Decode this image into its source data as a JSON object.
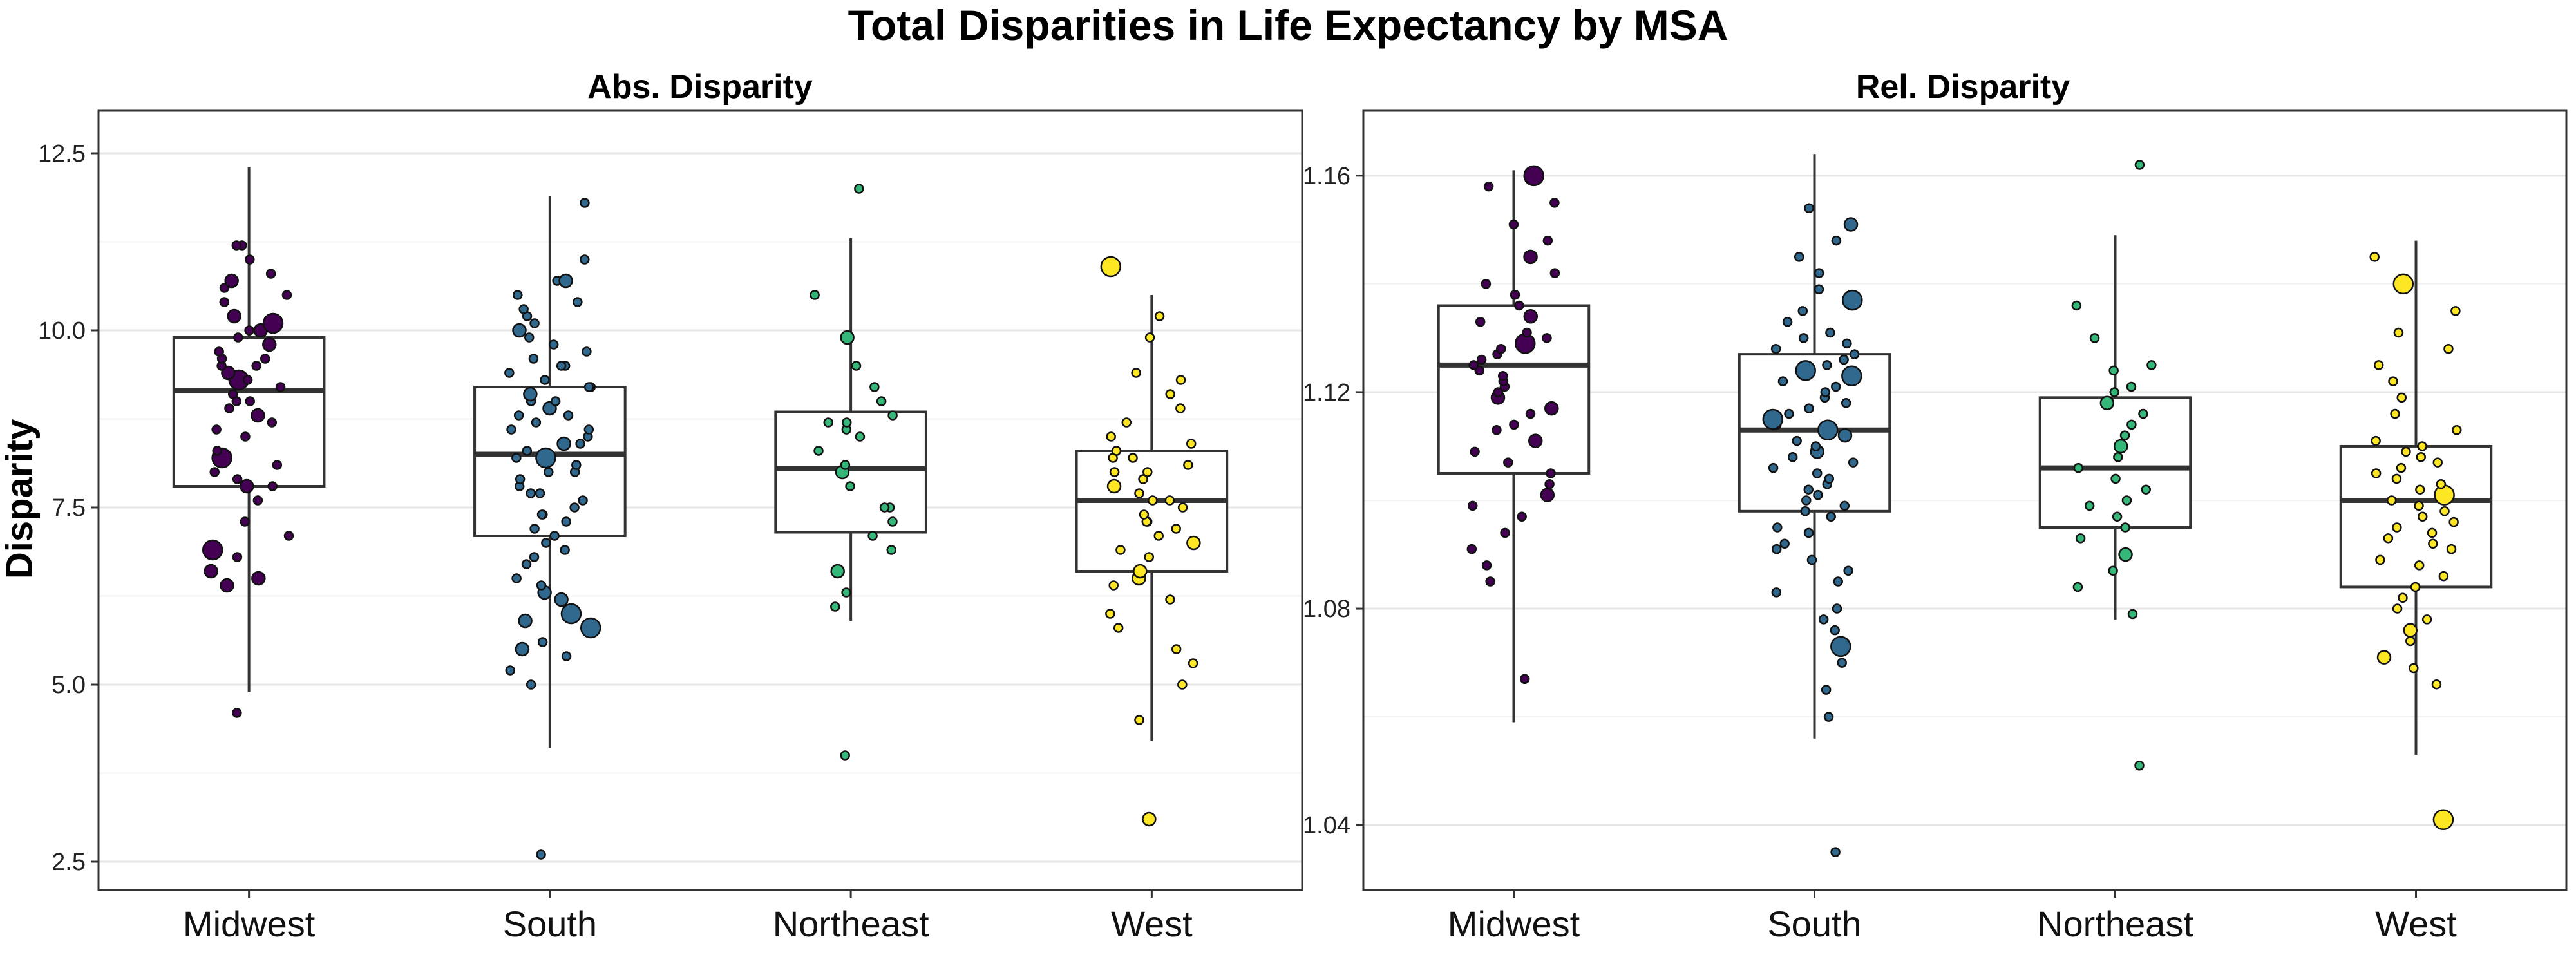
{
  "figure": {
    "title": "Total Disparities in Life Expectancy by MSA",
    "ylabel": "Disparity"
  },
  "colors": {
    "Midwest": "#440154",
    "South": "#31688E",
    "Northeast": "#35B779",
    "West": "#FDE725",
    "box_stroke": "#333333",
    "grid": "#E6E6E6"
  },
  "chart_data": [
    {
      "type": "boxplot",
      "title": "Abs. Disparity",
      "ylabel": "Disparity",
      "categories": [
        "Midwest",
        "South",
        "Northeast",
        "West"
      ],
      "ylim": [
        2.1,
        13.1
      ],
      "yticks": [
        2.5,
        5.0,
        7.5,
        10.0,
        12.5
      ],
      "ytick_labels": [
        "2.5",
        "5.0",
        "7.5",
        "10.0",
        "12.5"
      ],
      "grid": true,
      "boxes": [
        {
          "category": "Midwest",
          "whisker_low": 4.9,
          "q1": 7.8,
          "median": 9.15,
          "q3": 9.9,
          "whisker_high": 12.3
        },
        {
          "category": "South",
          "whisker_low": 4.1,
          "q1": 7.1,
          "median": 8.25,
          "q3": 9.2,
          "whisker_high": 11.9
        },
        {
          "category": "Northeast",
          "whisker_low": 5.9,
          "q1": 7.15,
          "median": 8.05,
          "q3": 8.85,
          "whisker_high": 11.3
        },
        {
          "category": "West",
          "whisker_low": 4.2,
          "q1": 6.6,
          "median": 7.6,
          "q3": 8.3,
          "whisker_high": 10.5
        }
      ],
      "outliers": [
        {
          "category": "Midwest",
          "values": [
            4.6
          ]
        },
        {
          "category": "South",
          "values": [
            2.6
          ]
        },
        {
          "category": "Northeast",
          "values": [
            4.0,
            12.0
          ]
        },
        {
          "category": "West",
          "values": [
            3.1,
            10.9
          ]
        }
      ],
      "points": [
        {
          "category": "Midwest",
          "values": [
            6.4,
            6.5,
            6.6,
            6.8,
            6.9,
            7.1,
            7.3,
            7.6,
            7.8,
            7.8,
            7.9,
            8.0,
            8.1,
            8.2,
            8.3,
            8.5,
            8.6,
            8.7,
            8.8,
            8.9,
            9.0,
            9.0,
            9.1,
            9.2,
            9.3,
            9.3,
            9.4,
            9.5,
            9.5,
            9.6,
            9.6,
            9.7,
            9.8,
            9.9,
            10.0,
            10.0,
            10.1,
            10.2,
            10.4,
            10.5,
            10.6,
            10.7,
            10.8,
            11.0,
            11.2,
            11.2
          ]
        },
        {
          "category": "South",
          "values": [
            5.0,
            5.2,
            5.4,
            5.5,
            5.6,
            5.8,
            5.9,
            6.0,
            6.2,
            6.3,
            6.4,
            6.5,
            6.7,
            6.8,
            6.9,
            7.0,
            7.1,
            7.2,
            7.3,
            7.4,
            7.4,
            7.5,
            7.6,
            7.7,
            7.7,
            7.8,
            7.9,
            8.0,
            8.0,
            8.1,
            8.2,
            8.2,
            8.3,
            8.4,
            8.4,
            8.5,
            8.6,
            8.6,
            8.7,
            8.8,
            8.8,
            8.9,
            9.0,
            9.0,
            9.1,
            9.2,
            9.2,
            9.3,
            9.4,
            9.5,
            9.5,
            9.6,
            9.7,
            9.8,
            9.9,
            10.0,
            10.1,
            10.2,
            10.3,
            10.4,
            10.5,
            10.7,
            10.7,
            11.0,
            11.8
          ]
        },
        {
          "category": "Northeast",
          "values": [
            6.1,
            6.3,
            6.6,
            6.9,
            7.1,
            7.3,
            7.5,
            7.5,
            7.8,
            8.0,
            8.1,
            8.3,
            8.5,
            8.6,
            8.7,
            8.7,
            8.8,
            9.0,
            9.2,
            9.5,
            9.9,
            10.5
          ]
        },
        {
          "category": "West",
          "values": [
            4.5,
            5.0,
            5.3,
            5.5,
            5.8,
            6.0,
            6.2,
            6.4,
            6.5,
            6.6,
            6.8,
            6.9,
            7.0,
            7.1,
            7.2,
            7.3,
            7.3,
            7.4,
            7.5,
            7.6,
            7.6,
            7.7,
            7.8,
            7.9,
            8.0,
            8.0,
            8.1,
            8.2,
            8.2,
            8.3,
            8.4,
            8.5,
            8.7,
            8.9,
            9.1,
            9.3,
            9.4,
            9.9,
            10.2
          ]
        }
      ]
    },
    {
      "type": "boxplot",
      "title": "Rel. Disparity",
      "categories": [
        "Midwest",
        "South",
        "Northeast",
        "West"
      ],
      "ylim": [
        1.028,
        1.172
      ],
      "yticks": [
        1.04,
        1.08,
        1.12,
        1.16
      ],
      "ytick_labels": [
        "1.04",
        "1.08",
        "1.12",
        "1.16"
      ],
      "grid": true,
      "boxes": [
        {
          "category": "Midwest",
          "whisker_low": 1.059,
          "q1": 1.105,
          "median": 1.125,
          "q3": 1.136,
          "whisker_high": 1.161
        },
        {
          "category": "South",
          "whisker_low": 1.056,
          "q1": 1.098,
          "median": 1.113,
          "q3": 1.127,
          "whisker_high": 1.164
        },
        {
          "category": "Northeast",
          "whisker_low": 1.078,
          "q1": 1.095,
          "median": 1.106,
          "q3": 1.119,
          "whisker_high": 1.149
        },
        {
          "category": "West",
          "whisker_low": 1.053,
          "q1": 1.084,
          "median": 1.1,
          "q3": 1.11,
          "whisker_high": 1.148
        }
      ],
      "outliers": [
        {
          "category": "South",
          "values": [
            1.035
          ]
        },
        {
          "category": "Northeast",
          "values": [
            1.051,
            1.162
          ]
        },
        {
          "category": "West",
          "values": [
            1.041
          ]
        }
      ],
      "points": [
        {
          "category": "Midwest",
          "values": [
            1.067,
            1.085,
            1.088,
            1.091,
            1.094,
            1.097,
            1.099,
            1.101,
            1.103,
            1.105,
            1.107,
            1.109,
            1.111,
            1.113,
            1.114,
            1.116,
            1.117,
            1.119,
            1.12,
            1.121,
            1.122,
            1.123,
            1.124,
            1.125,
            1.126,
            1.127,
            1.128,
            1.129,
            1.13,
            1.131,
            1.133,
            1.134,
            1.136,
            1.138,
            1.14,
            1.142,
            1.145,
            1.148,
            1.151,
            1.155,
            1.158,
            1.16
          ]
        },
        {
          "category": "South",
          "values": [
            1.06,
            1.065,
            1.07,
            1.073,
            1.076,
            1.078,
            1.08,
            1.083,
            1.085,
            1.087,
            1.089,
            1.091,
            1.092,
            1.094,
            1.095,
            1.097,
            1.098,
            1.099,
            1.1,
            1.101,
            1.102,
            1.103,
            1.104,
            1.105,
            1.106,
            1.107,
            1.108,
            1.109,
            1.11,
            1.111,
            1.112,
            1.113,
            1.114,
            1.115,
            1.116,
            1.117,
            1.118,
            1.119,
            1.12,
            1.121,
            1.122,
            1.123,
            1.124,
            1.125,
            1.126,
            1.127,
            1.128,
            1.129,
            1.13,
            1.131,
            1.133,
            1.135,
            1.137,
            1.139,
            1.142,
            1.145,
            1.148,
            1.151,
            1.154
          ]
        },
        {
          "category": "Northeast",
          "values": [
            1.079,
            1.084,
            1.087,
            1.09,
            1.093,
            1.095,
            1.097,
            1.099,
            1.1,
            1.102,
            1.104,
            1.106,
            1.108,
            1.11,
            1.112,
            1.114,
            1.116,
            1.118,
            1.12,
            1.121,
            1.124,
            1.125,
            1.13,
            1.136
          ]
        },
        {
          "category": "West",
          "values": [
            1.066,
            1.069,
            1.071,
            1.074,
            1.076,
            1.078,
            1.08,
            1.082,
            1.084,
            1.086,
            1.088,
            1.089,
            1.091,
            1.092,
            1.093,
            1.094,
            1.095,
            1.096,
            1.097,
            1.098,
            1.099,
            1.1,
            1.101,
            1.102,
            1.103,
            1.104,
            1.105,
            1.106,
            1.107,
            1.108,
            1.109,
            1.11,
            1.111,
            1.113,
            1.116,
            1.119,
            1.122,
            1.125,
            1.128,
            1.131,
            1.135,
            1.14,
            1.145
          ]
        }
      ]
    }
  ]
}
